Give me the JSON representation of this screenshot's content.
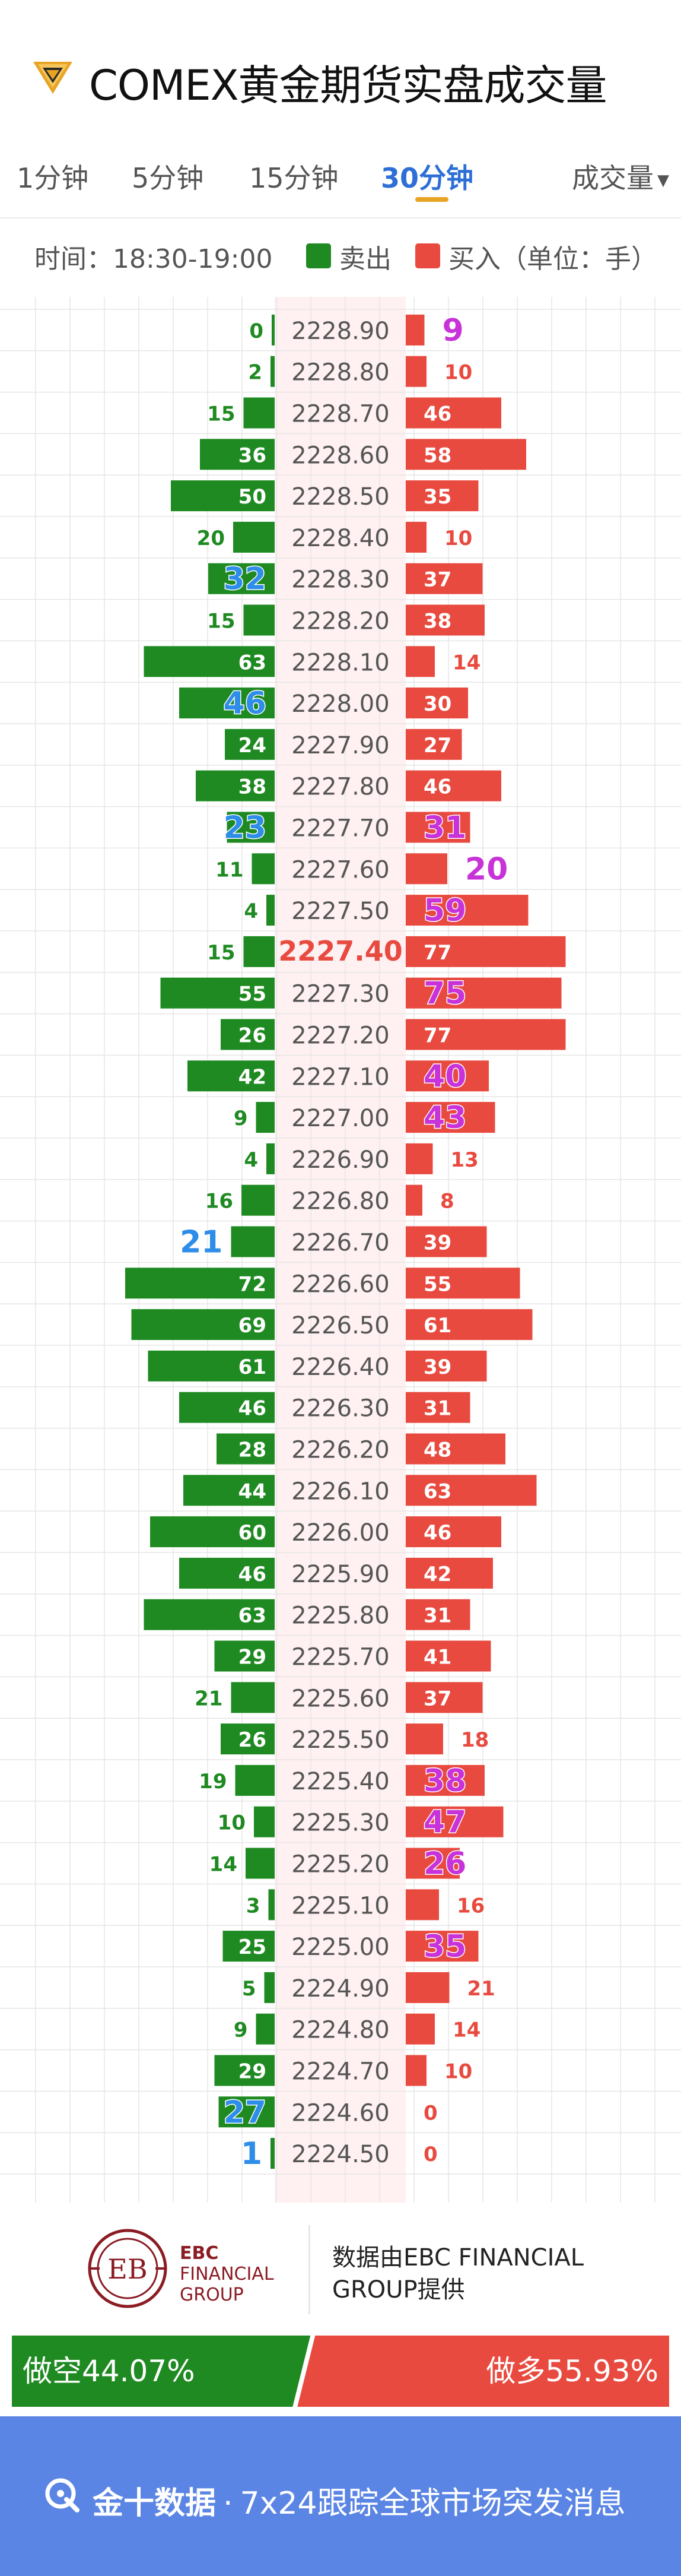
{
  "header": {
    "title": "COMEX黄金期货实盘成交量",
    "logo_icon": "gold-diamond-icon"
  },
  "tabs": [
    {
      "label": "1分钟",
      "active": false
    },
    {
      "label": "5分钟",
      "active": false
    },
    {
      "label": "15分钟",
      "active": false
    },
    {
      "label": "30分钟",
      "active": true
    }
  ],
  "sort_select": {
    "label": "成交量",
    "icon": "caret-down-icon"
  },
  "legend": {
    "time": "时间：18:30-19:00",
    "sell_label": "卖出",
    "buy_label": "买入（单位：手）",
    "sell_color": "#1f8a22",
    "buy_color": "#e84a3f"
  },
  "chart_data": {
    "type": "bar",
    "orientation": "horizontal-diverging",
    "title": "COMEX黄金期货实盘成交量",
    "time_window": "18:30-19:00",
    "unit": "手",
    "current_price": "2227.40",
    "categories": [
      "2228.90",
      "2228.80",
      "2228.70",
      "2228.60",
      "2228.50",
      "2228.40",
      "2228.30",
      "2228.20",
      "2228.10",
      "2228.00",
      "2227.90",
      "2227.80",
      "2227.70",
      "2227.60",
      "2227.50",
      "2227.40",
      "2227.30",
      "2227.20",
      "2227.10",
      "2227.00",
      "2226.90",
      "2226.80",
      "2226.70",
      "2226.60",
      "2226.50",
      "2226.40",
      "2226.30",
      "2226.20",
      "2226.10",
      "2226.00",
      "2225.90",
      "2225.80",
      "2225.70",
      "2225.60",
      "2225.50",
      "2225.40",
      "2225.30",
      "2225.20",
      "2225.10",
      "2225.00",
      "2224.90",
      "2224.80",
      "2224.70",
      "2224.60",
      "2224.50"
    ],
    "series": [
      {
        "name": "卖出",
        "values": [
          0,
          2,
          15,
          36,
          50,
          20,
          32,
          15,
          63,
          46,
          24,
          38,
          23,
          11,
          4,
          15,
          55,
          26,
          42,
          9,
          4,
          16,
          21,
          72,
          69,
          61,
          46,
          28,
          44,
          60,
          46,
          63,
          29,
          21,
          26,
          19,
          10,
          14,
          3,
          25,
          5,
          9,
          29,
          27,
          1
        ]
      },
      {
        "name": "买入",
        "values": [
          9,
          10,
          46,
          58,
          35,
          10,
          37,
          38,
          14,
          30,
          27,
          46,
          31,
          20,
          59,
          77,
          75,
          77,
          40,
          43,
          13,
          8,
          39,
          55,
          61,
          39,
          31,
          48,
          63,
          46,
          42,
          31,
          41,
          37,
          18,
          38,
          47,
          26,
          16,
          35,
          21,
          14,
          10,
          0,
          0
        ]
      }
    ],
    "sell_highlight_values": [
      32,
      46,
      23,
      21,
      27,
      1
    ],
    "buy_highlight_values": [
      9,
      31,
      20,
      59,
      75,
      40,
      43,
      38,
      47,
      26,
      35
    ],
    "xlim": [
      0,
      80
    ],
    "grid": true,
    "colors": {
      "sell": "#1f8a22",
      "buy": "#e84a3f",
      "price_band": "#fff0f2",
      "grid": "#e6e6e6",
      "highlight_sell": "#2e8de8",
      "highlight_buy": "#c733d8",
      "current_price": "#e84a3f"
    }
  },
  "branding": {
    "ebc_name": "EBC",
    "ebc_line2": "FINANCIAL",
    "ebc_line3": "GROUP",
    "provided_by": "数据由EBC FINANCIAL GROUP提供",
    "color": "#8b1c24"
  },
  "sentiment": {
    "short_label": "做空44.07%",
    "long_label": "做多55.93%",
    "short_pct": 44.07,
    "long_pct": 55.93,
    "short_color": "#1f8a22",
    "long_color": "#e84a3f"
  },
  "footer": {
    "brand": "金十数据",
    "separator": "·",
    "slogan": "7x24跟踪全球市场突发消息",
    "icon": "jin10-q-icon"
  }
}
